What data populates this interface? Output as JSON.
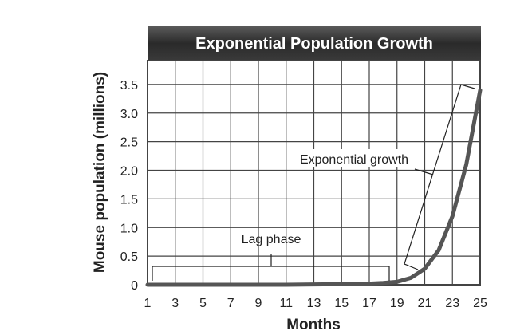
{
  "chart_data": {
    "type": "line",
    "title": "Exponential Population Growth",
    "xlabel": "Months",
    "ylabel": "Mouse population (millions)",
    "xlim": [
      1,
      25
    ],
    "ylim": [
      0,
      4
    ],
    "grid": true,
    "xticks": [
      "1",
      "3",
      "5",
      "7",
      "9",
      "11",
      "13",
      "15",
      "17",
      "19",
      "21",
      "23",
      "25"
    ],
    "xtick_values": [
      1,
      3,
      5,
      7,
      9,
      11,
      13,
      15,
      17,
      19,
      21,
      23,
      25
    ],
    "yticks": [
      "0",
      "0.5",
      "1.0",
      "1.5",
      "2.0",
      "2.5",
      "3.0",
      "3.5"
    ],
    "ytick_values": [
      0,
      0.5,
      1.0,
      1.5,
      2.0,
      2.5,
      3.0,
      3.5
    ],
    "series": [
      {
        "name": "Mouse population",
        "color": "#555555",
        "x": [
          1,
          3,
          5,
          7,
          9,
          11,
          13,
          15,
          17,
          18,
          19,
          20,
          21,
          22,
          23,
          24,
          25
        ],
        "y": [
          0.0,
          0.0,
          0.0,
          0.0,
          0.0,
          0.0,
          0.005,
          0.01,
          0.02,
          0.03,
          0.05,
          0.12,
          0.28,
          0.6,
          1.2,
          2.1,
          3.4
        ]
      }
    ],
    "annotations": [
      {
        "text": "Lag phase",
        "x_range": [
          1.3,
          18.5
        ]
      },
      {
        "text": "Exponential growth",
        "x_range": [
          19.5,
          24
        ]
      }
    ]
  }
}
